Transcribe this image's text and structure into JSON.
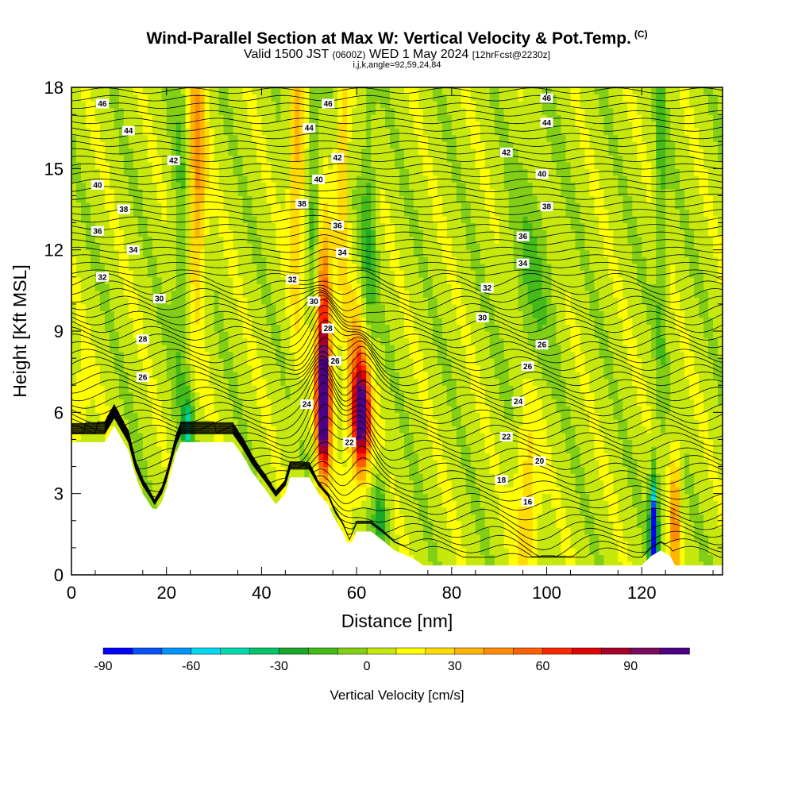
{
  "title": {
    "main": "Wind-Parallel Section at Max W: Vertical Velocity & Pot.Temp.",
    "copyright": "(C)",
    "valid_prefix": "Valid 1500 JST",
    "valid_utc": "(0600Z)",
    "valid_date": "WED 1 May 2024",
    "forecast": "[12hrFcst@2230z]",
    "indices": "i,j,k,angle=92,59,24,84"
  },
  "chart_data": {
    "type": "heatmap",
    "xlabel": "Distance [nm]",
    "ylabel": "Height [Kft MSL]",
    "xlim": [
      0,
      137
    ],
    "ylim": [
      0,
      18
    ],
    "xticks": [
      0,
      20,
      40,
      60,
      80,
      100,
      120
    ],
    "yticks": [
      0,
      3,
      6,
      9,
      12,
      15,
      18
    ],
    "colorbar": {
      "title": "Vertical Velocity [cm/s]",
      "min": -90,
      "max": 110,
      "step": 10,
      "tick_values": [
        -90,
        -60,
        -30,
        0,
        30,
        60,
        90
      ],
      "colors": [
        "#0000ff",
        "#0a50ff",
        "#0094ff",
        "#00d8f0",
        "#00d9ae",
        "#00c46a",
        "#19a829",
        "#45bb1a",
        "#82cf16",
        "#c6e80c",
        "#ffff00",
        "#ffdb00",
        "#ffb400",
        "#ff8c00",
        "#ff6000",
        "#ff2600",
        "#e00000",
        "#a6002a",
        "#7a0b5f",
        "#4e0085"
      ]
    },
    "theta_contours": {
      "label_values": [
        16,
        18,
        20,
        22,
        24,
        26,
        28,
        30,
        32,
        34,
        36,
        38,
        40,
        42,
        44,
        46
      ],
      "labels": [
        {
          "text": "46",
          "x": 6.5,
          "y": 17.4
        },
        {
          "text": "46",
          "x": 54,
          "y": 17.4
        },
        {
          "text": "46",
          "x": 100,
          "y": 17.6
        },
        {
          "text": "44",
          "x": 12,
          "y": 16.4
        },
        {
          "text": "44",
          "x": 50,
          "y": 16.5
        },
        {
          "text": "44",
          "x": 100,
          "y": 16.7
        },
        {
          "text": "42",
          "x": 21.5,
          "y": 15.3
        },
        {
          "text": "42",
          "x": 56,
          "y": 15.4
        },
        {
          "text": "42",
          "x": 91.5,
          "y": 15.6
        },
        {
          "text": "40",
          "x": 5.5,
          "y": 14.4
        },
        {
          "text": "40",
          "x": 52,
          "y": 14.6
        },
        {
          "text": "40",
          "x": 99,
          "y": 14.8
        },
        {
          "text": "38",
          "x": 11,
          "y": 13.5
        },
        {
          "text": "38",
          "x": 48.5,
          "y": 13.7
        },
        {
          "text": "38",
          "x": 100,
          "y": 13.6
        },
        {
          "text": "36",
          "x": 5.5,
          "y": 12.7
        },
        {
          "text": "36",
          "x": 56,
          "y": 12.9
        },
        {
          "text": "36",
          "x": 95,
          "y": 12.5
        },
        {
          "text": "34",
          "x": 13,
          "y": 12.0
        },
        {
          "text": "34",
          "x": 57,
          "y": 11.9
        },
        {
          "text": "34",
          "x": 95,
          "y": 11.5
        },
        {
          "text": "32",
          "x": 6.5,
          "y": 11.0
        },
        {
          "text": "32",
          "x": 46.5,
          "y": 10.9
        },
        {
          "text": "32",
          "x": 87.5,
          "y": 10.6
        },
        {
          "text": "30",
          "x": 18.5,
          "y": 10.2
        },
        {
          "text": "30",
          "x": 51,
          "y": 10.1
        },
        {
          "text": "30",
          "x": 86.5,
          "y": 9.5
        },
        {
          "text": "28",
          "x": 15,
          "y": 8.7
        },
        {
          "text": "28",
          "x": 54,
          "y": 9.1
        },
        {
          "text": "26",
          "x": 15,
          "y": 7.3
        },
        {
          "text": "26",
          "x": 55.5,
          "y": 7.9
        },
        {
          "text": "26",
          "x": 99,
          "y": 8.5
        },
        {
          "text": "26",
          "x": 96,
          "y": 7.7
        },
        {
          "text": "24",
          "x": 49.5,
          "y": 6.3
        },
        {
          "text": "24",
          "x": 94,
          "y": 6.4
        },
        {
          "text": "22",
          "x": 58.5,
          "y": 4.9
        },
        {
          "text": "22",
          "x": 91.5,
          "y": 5.1
        },
        {
          "text": "20",
          "x": 98.5,
          "y": 4.2
        },
        {
          "text": "18",
          "x": 90.5,
          "y": 3.5
        },
        {
          "text": "16",
          "x": 96,
          "y": 2.7
        }
      ]
    }
  }
}
